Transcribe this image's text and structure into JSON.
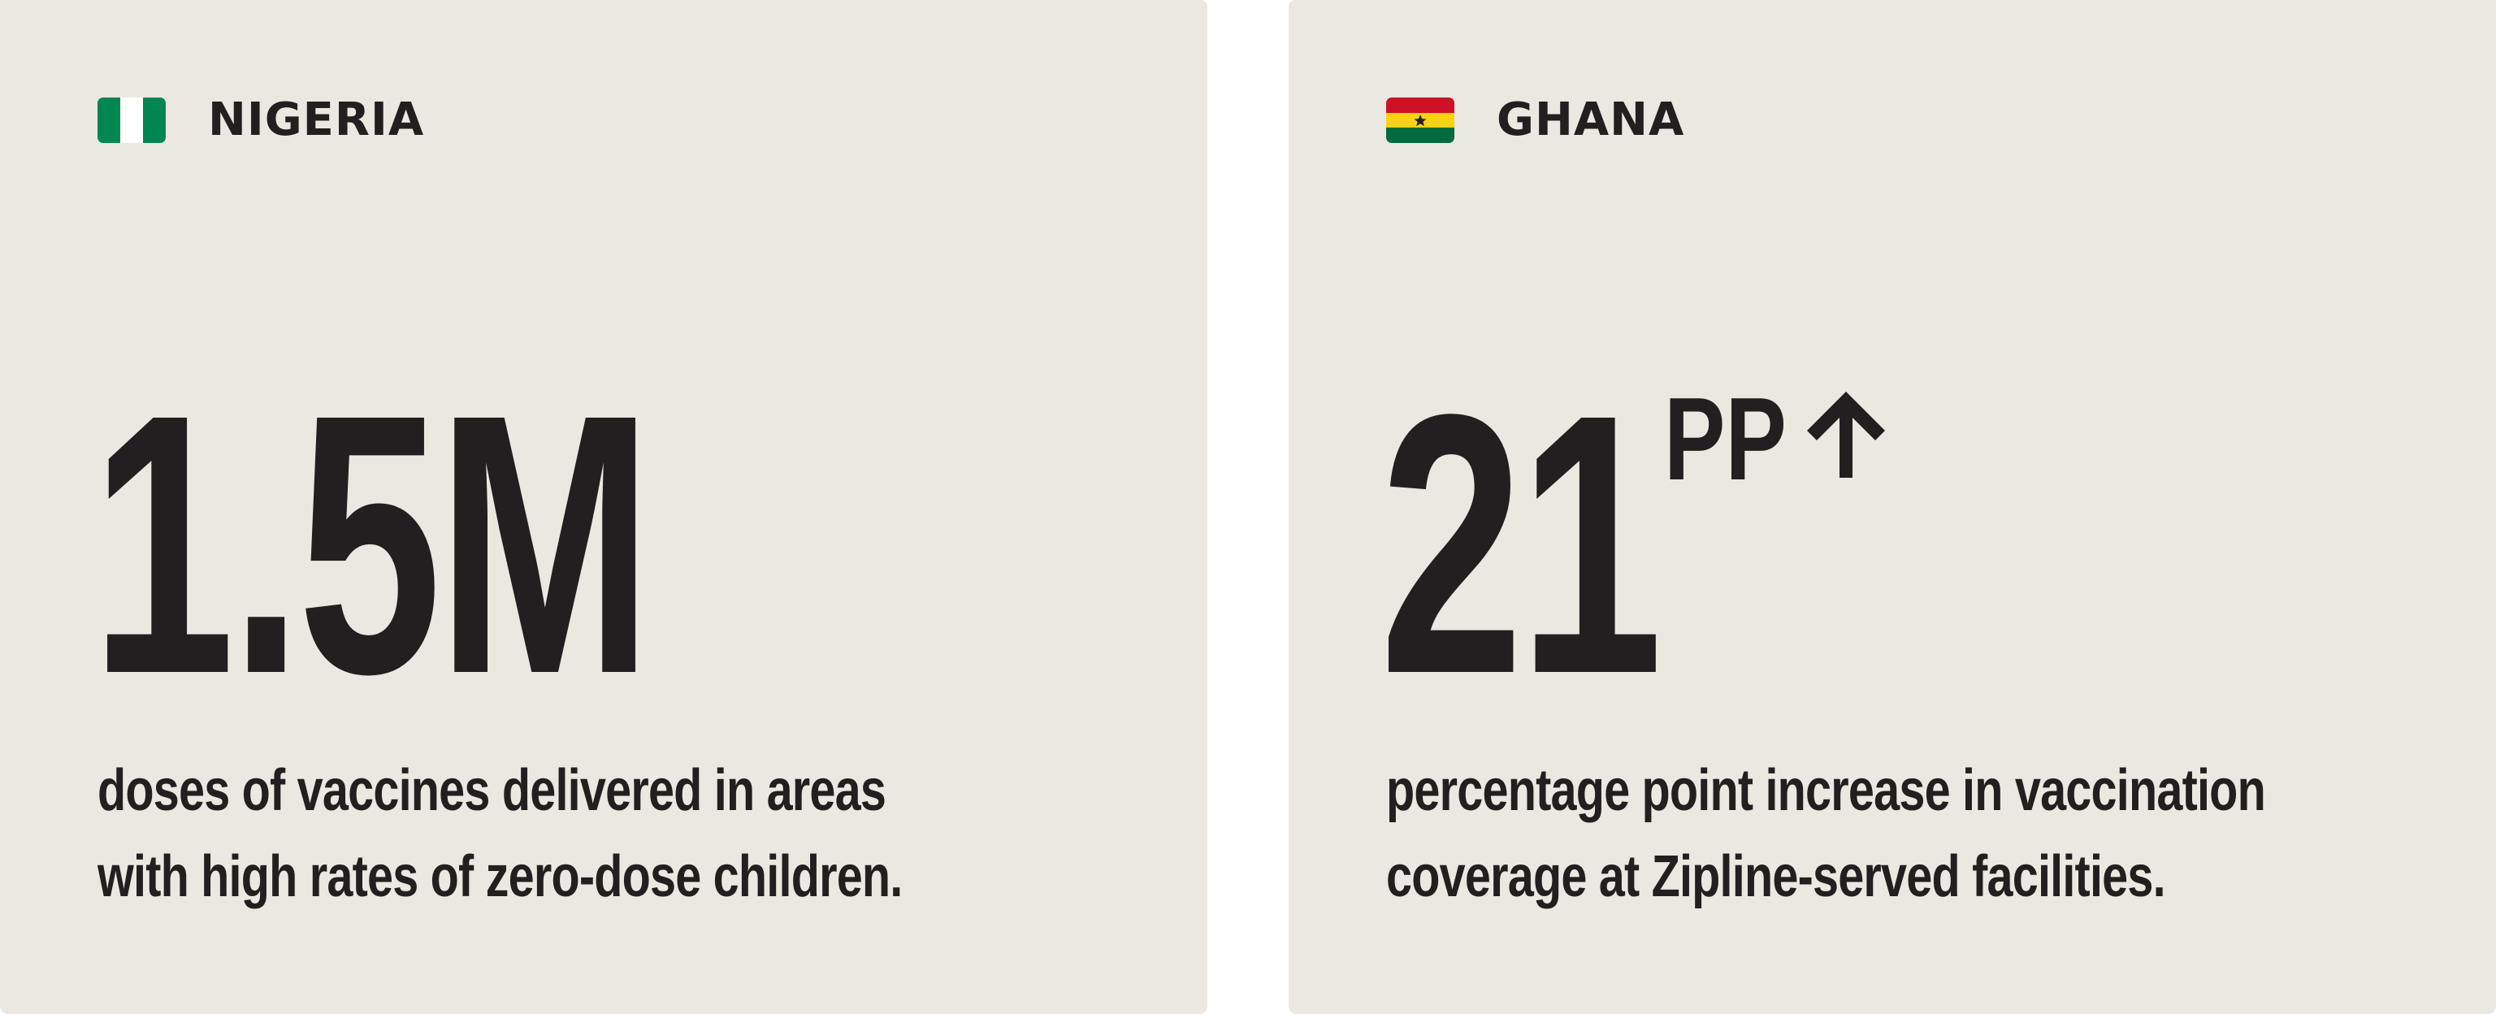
{
  "cards": [
    {
      "country": "NIGERIA",
      "flag_icon": "nigeria-flag-icon",
      "flag_colors": [
        "#008751",
        "#ffffff",
        "#008751"
      ],
      "stat_number": "1.5M",
      "stat_suffix": "",
      "description_lines": [
        "doses of vaccines delivered in areas",
        "with high rates of zero-dose children."
      ]
    },
    {
      "country": "GHANA",
      "flag_icon": "ghana-flag-icon",
      "flag_colors": [
        "#ce1126",
        "#fcd116",
        "#006b3f"
      ],
      "stat_number": "21",
      "stat_suffix": "PP",
      "stat_suffix_icon": "arrow-up-icon",
      "description_lines": [
        "percentage point increase in vaccination",
        "coverage at Zipline-served facilities."
      ]
    }
  ],
  "colors": {
    "card_background": "#ebe8e2",
    "text": "#231f20",
    "page_background": "#ffffff"
  }
}
